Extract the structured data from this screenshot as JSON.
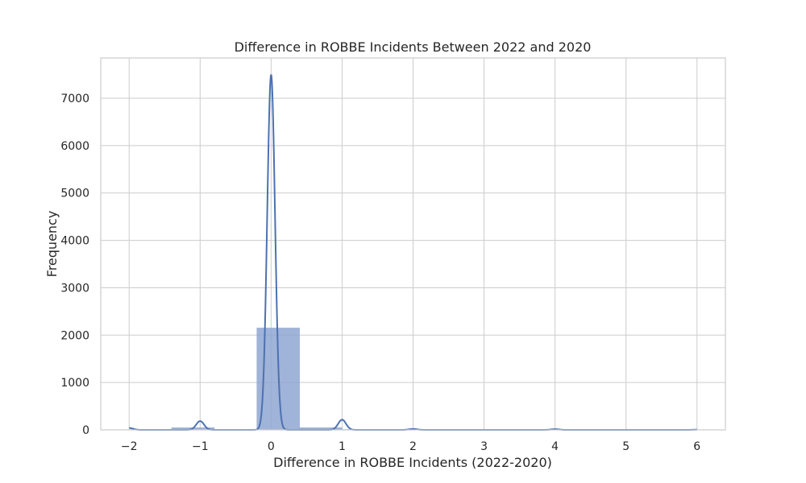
{
  "chart_data": {
    "type": "histogram",
    "title": "Difference in ROBBE Incidents Between 2022 and 2020",
    "xlabel": "Difference in ROBBE Incidents (2022-2020)",
    "ylabel": "Frequency",
    "xlim": [
      -2.4,
      6.4
    ],
    "ylim": [
      0,
      7850
    ],
    "xticks": [
      -2,
      -1,
      0,
      1,
      2,
      3,
      4,
      5,
      6
    ],
    "xtick_labels": [
      "−2",
      "−1",
      "0",
      "1",
      "2",
      "3",
      "4",
      "5",
      "6"
    ],
    "yticks": [
      0,
      1000,
      2000,
      3000,
      4000,
      5000,
      6000,
      7000
    ],
    "ytick_labels": [
      "0",
      "1000",
      "2000",
      "3000",
      "4000",
      "5000",
      "6000",
      "7000"
    ],
    "bins": [
      {
        "x0": -2.0,
        "x1": -1.4,
        "count": 6
      },
      {
        "x0": -1.4,
        "x1": -0.8,
        "count": 45
      },
      {
        "x0": -0.8,
        "x1": -0.2,
        "count": 6
      },
      {
        "x0": -0.2,
        "x1": 0.4,
        "count": 2150
      },
      {
        "x0": 0.4,
        "x1": 1.0,
        "count": 45
      },
      {
        "x0": 1.0,
        "x1": 1.6,
        "count": 8
      },
      {
        "x0": 1.6,
        "x1": 2.2,
        "count": 8
      },
      {
        "x0": 2.2,
        "x1": 2.8,
        "count": 2
      },
      {
        "x0": 2.8,
        "x1": 3.4,
        "count": 2
      },
      {
        "x0": 3.4,
        "x1": 4.0,
        "count": 4
      },
      {
        "x0": 4.0,
        "x1": 4.6,
        "count": 4
      },
      {
        "x0": 4.6,
        "x1": 5.2,
        "count": 2
      },
      {
        "x0": 5.2,
        "x1": 5.8,
        "count": 2
      },
      {
        "x0": 5.8,
        "x1": 6.0,
        "count": 2
      }
    ],
    "kde_peaks": [
      {
        "x": -2,
        "y": 40
      },
      {
        "x": -1,
        "y": 185
      },
      {
        "x": 0,
        "y": 7500
      },
      {
        "x": 1,
        "y": 215
      },
      {
        "x": 2,
        "y": 20
      },
      {
        "x": 4,
        "y": 15
      },
      {
        "x": 6,
        "y": 5
      }
    ],
    "kde_width": 0.055,
    "grid": true,
    "colors": {
      "bar": "#8fa6d1",
      "line": "#4c72b0"
    }
  }
}
